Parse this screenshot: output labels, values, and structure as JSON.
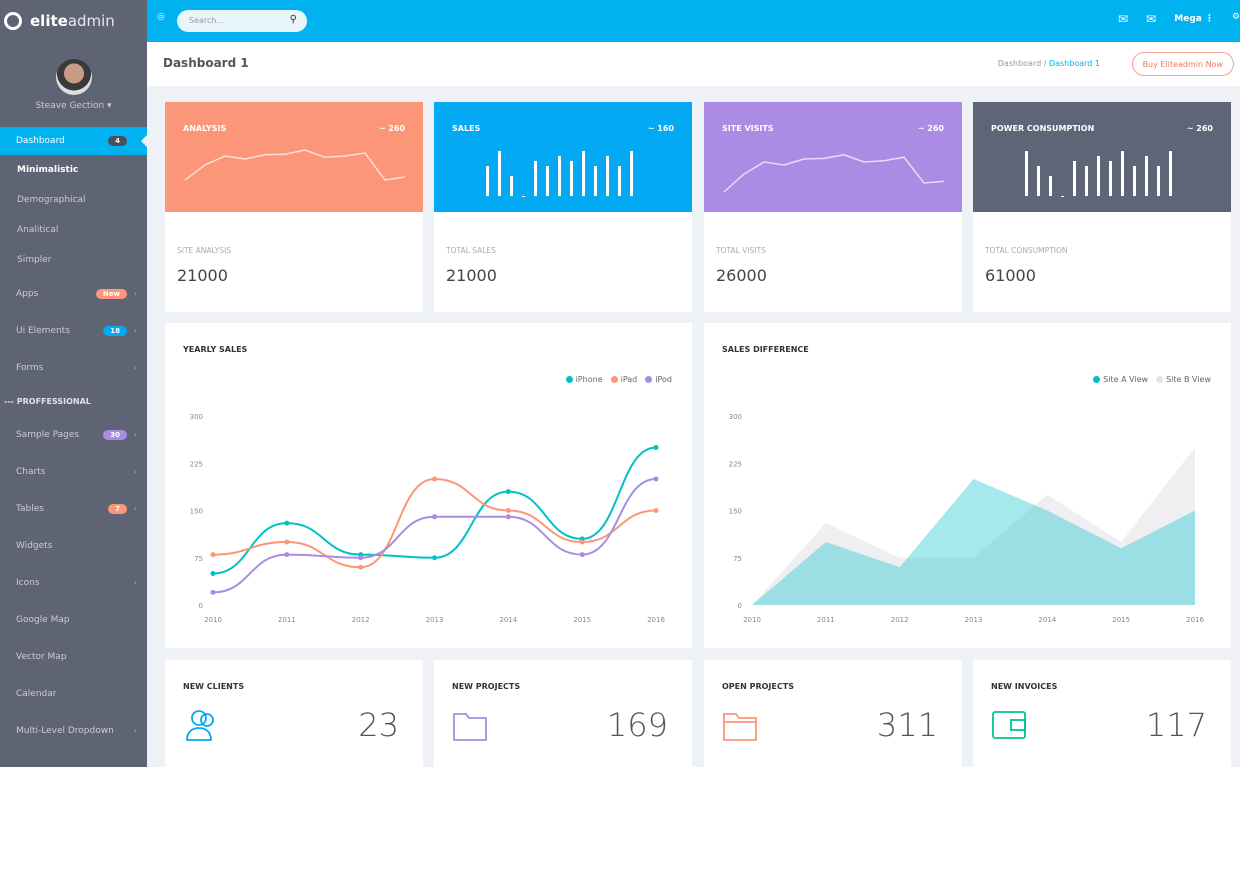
{
  "brand": {
    "bold": "elite",
    "light": "admin"
  },
  "user": {
    "name": "Steave Gection ▾"
  },
  "sidebar": {
    "dashboard": {
      "label": "Dashboard",
      "badge": "4"
    },
    "subitems": [
      "Minimalistic",
      "Demographical",
      "Analitical",
      "Simpler"
    ],
    "items": [
      {
        "label": "Apps",
        "badge": "New",
        "badge_color": "#fb9678"
      },
      {
        "label": "Ui Elements",
        "badge": "18",
        "badge_color": "#03a9f3"
      },
      {
        "label": "Forms"
      }
    ],
    "section": "--- PROFFESSIONAL",
    "items2": [
      {
        "label": "Sample Pages",
        "badge": "30",
        "badge_color": "#ab8ce4"
      },
      {
        "label": "Charts"
      },
      {
        "label": "Tables",
        "badge": "7",
        "badge_color": "#fb9678"
      },
      {
        "label": "Widgets"
      },
      {
        "label": "Icons"
      },
      {
        "label": "Google Map"
      },
      {
        "label": "Vector Map"
      },
      {
        "label": "Calendar"
      },
      {
        "label": "Multi-Level Dropdown"
      }
    ]
  },
  "topbar": {
    "search_placeholder": "Search...",
    "user": "Mega"
  },
  "page": {
    "title": "Dashboard 1",
    "breadcrumb": [
      "Dashboard",
      "Dashboard 1"
    ],
    "buy": "Buy Eliteadmin Now"
  },
  "stats": [
    {
      "title": "ANALYSIS",
      "change": "~ 260",
      "label": "SITE ANALYSIS",
      "value": "21000",
      "color": "#fb9678",
      "kind": "line",
      "spark": [
        20,
        45,
        60,
        55,
        62,
        63,
        70,
        58,
        60,
        65,
        20,
        25
      ]
    },
    {
      "title": "SALES",
      "change": "~ 160",
      "label": "TOTAL SALES",
      "value": "21000",
      "color": "#03a9f3",
      "kind": "bar",
      "spark": [
        30,
        45,
        20,
        0,
        35,
        30,
        40,
        35,
        45,
        30,
        40,
        30,
        45
      ]
    },
    {
      "title": "SITE VISITS",
      "change": "~ 260",
      "label": "TOTAL VISITS",
      "value": "26000",
      "color": "#ab8ce4",
      "kind": "line",
      "spark": [
        0,
        30,
        50,
        45,
        55,
        56,
        62,
        50,
        52,
        58,
        15,
        18
      ]
    },
    {
      "title": "POWER CONSUMPTION",
      "change": "~ 260",
      "label": "TOTAL CONSUMPTION",
      "value": "61000",
      "color": "#5e6577",
      "kind": "bar",
      "spark": [
        45,
        30,
        20,
        0,
        35,
        30,
        40,
        35,
        45,
        30,
        40,
        30,
        45
      ]
    }
  ],
  "chart_data": [
    {
      "type": "line",
      "title": "YEARLY SALES",
      "x": [
        "2010",
        "2011",
        "2012",
        "2013",
        "2014",
        "2015",
        "2016"
      ],
      "ylim": [
        0,
        300
      ],
      "yticks": [
        "0",
        "75",
        "150",
        "225",
        "300"
      ],
      "legend": "top-right",
      "series": [
        {
          "name": "iPhone",
          "color": "#01c0c8",
          "values": [
            50,
            130,
            80,
            75,
            180,
            105,
            250
          ]
        },
        {
          "name": "iPad",
          "color": "#fb9678",
          "values": [
            80,
            100,
            60,
            200,
            150,
            100,
            150
          ]
        },
        {
          "name": "iPod",
          "color": "#ab8ce4",
          "values": [
            20,
            80,
            75,
            140,
            140,
            80,
            200
          ]
        }
      ]
    },
    {
      "type": "area",
      "title": "SALES DIFFERENCE",
      "x": [
        "2010",
        "2011",
        "2012",
        "2013",
        "2014",
        "2015",
        "2016"
      ],
      "ylim": [
        0,
        300
      ],
      "yticks": [
        "0",
        "75",
        "150",
        "225",
        "300"
      ],
      "legend": "top-right",
      "series": [
        {
          "name": "Site A View",
          "color": "#01c0c8",
          "values": [
            0,
            100,
            60,
            200,
            150,
            90,
            150
          ]
        },
        {
          "name": "Site B View",
          "color": "#e4e4e8",
          "values": [
            0,
            130,
            75,
            75,
            175,
            100,
            250
          ]
        }
      ]
    }
  ],
  "info": [
    {
      "title": "NEW CLIENTS",
      "value": "23",
      "color": "#03a9f3",
      "icon": "users-icon"
    },
    {
      "title": "NEW PROJECTS",
      "value": "169",
      "color": "#ab8ce4",
      "icon": "folder-icon"
    },
    {
      "title": "OPEN PROJECTS",
      "value": "311",
      "color": "#fb9678",
      "icon": "folder-open-icon"
    },
    {
      "title": "NEW INVOICES",
      "value": "117",
      "color": "#00c292",
      "icon": "wallet-icon"
    }
  ]
}
